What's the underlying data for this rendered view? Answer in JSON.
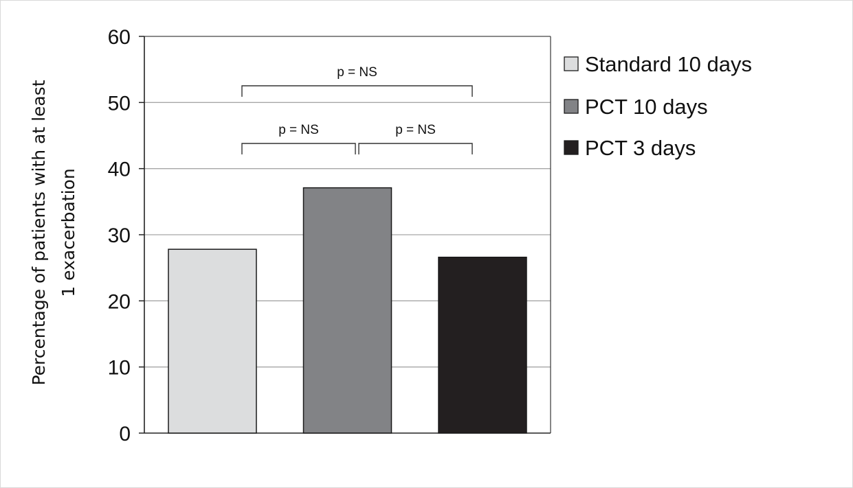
{
  "chart_data": {
    "type": "bar",
    "title": "",
    "xlabel": "",
    "ylabel": [
      "Percentage of patients with at least",
      "1 exacerbation"
    ],
    "ylim": [
      0,
      60
    ],
    "yticks": [
      0,
      10,
      20,
      30,
      40,
      50,
      60
    ],
    "grid": true,
    "legend_position": "right",
    "categories": [
      "Standard 10 days",
      "PCT 10 days",
      "PCT 3 days"
    ],
    "values": [
      27.8,
      37.1,
      26.6
    ],
    "colors": [
      "#dcddde",
      "#828386",
      "#231f20"
    ],
    "annotations": [
      {
        "text": "p = NS",
        "from": 0,
        "to": 1
      },
      {
        "text": "p = NS",
        "from": 1,
        "to": 2
      },
      {
        "text": "p = NS",
        "from": 0,
        "to": 2
      }
    ]
  }
}
